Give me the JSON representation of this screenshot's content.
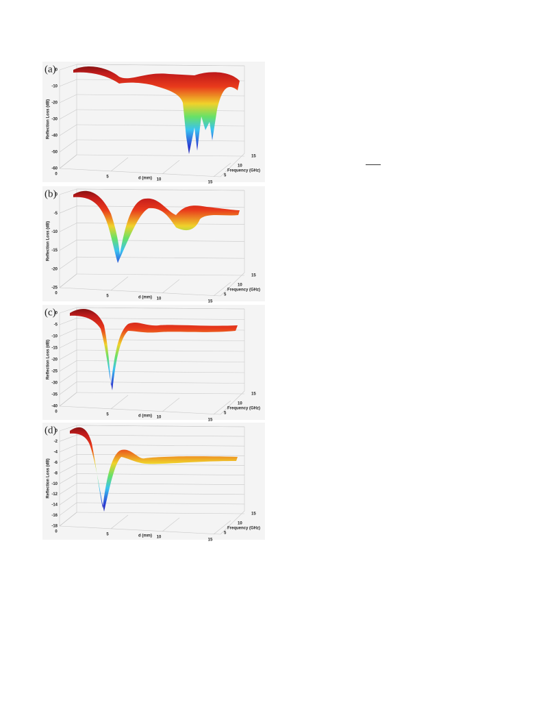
{
  "panels": [
    {
      "label": "(a)",
      "z_axis_label": "Reflection Loss (dB)",
      "z_ticks": [
        "0",
        "-10",
        "-20",
        "-30",
        "-40",
        "-50",
        "-60"
      ],
      "x_axis_label": "d (mm)",
      "x_ticks": [
        "0",
        "5",
        "10",
        "15"
      ],
      "y_axis_label": "Frequency (GHz)",
      "y_ticks": [
        "5",
        "10",
        "15"
      ]
    },
    {
      "label": "(b)",
      "z_axis_label": "Reflection Loss (dB)",
      "z_ticks": [
        "0",
        "-5",
        "-10",
        "-15",
        "-20",
        "-25"
      ],
      "x_axis_label": "d (mm)",
      "x_ticks": [
        "0",
        "5",
        "10",
        "15"
      ],
      "y_axis_label": "Frequency (GHz)",
      "y_ticks": [
        "5",
        "10",
        "15"
      ]
    },
    {
      "label": "(c)",
      "z_axis_label": "Reflection Loss (dB)",
      "z_ticks": [
        "0",
        "-5",
        "-10",
        "-15",
        "-20",
        "-25",
        "-30",
        "-35",
        "-40"
      ],
      "x_axis_label": "d (mm)",
      "x_ticks": [
        "0",
        "5",
        "10",
        "15"
      ],
      "y_axis_label": "Frequency (GHz)",
      "y_ticks": [
        "5",
        "10",
        "15"
      ]
    },
    {
      "label": "(d)",
      "z_axis_label": "Reflection Loss (dB)",
      "z_ticks": [
        "0",
        "-2",
        "-4",
        "-6",
        "-8",
        "-10",
        "-12",
        "-14",
        "-16",
        "-18"
      ],
      "x_axis_label": "d (mm)",
      "x_ticks": [
        "0",
        "5",
        "10",
        "15"
      ],
      "y_axis_label": "Frequency (GHz)",
      "y_ticks": [
        "5",
        "10",
        "15"
      ]
    }
  ]
}
